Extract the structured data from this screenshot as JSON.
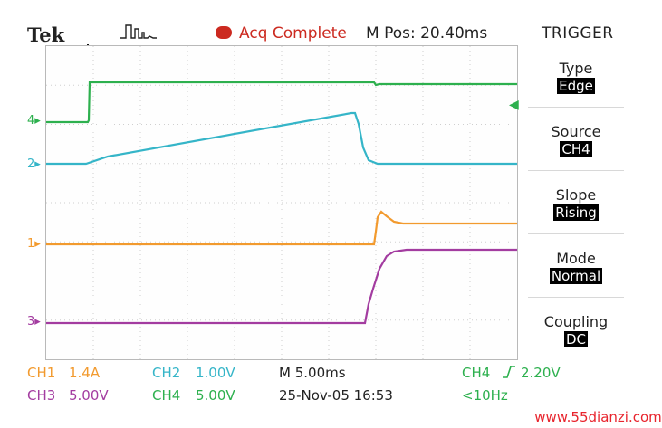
{
  "header": {
    "brand": "Tek",
    "acq_status": "Acq Complete",
    "m_pos": "M Pos: 20.40ms",
    "panel_title": "TRIGGER"
  },
  "trigger_menu": [
    {
      "label": "Type",
      "value": "Edge"
    },
    {
      "label": "Source",
      "value": "CH4"
    },
    {
      "label": "Slope",
      "value": "Rising"
    },
    {
      "label": "Mode",
      "value": "Normal"
    },
    {
      "label": "Coupling",
      "value": "DC"
    }
  ],
  "channel_markers": {
    "ch1": "1",
    "ch2": "2",
    "ch3": "3",
    "ch4": "4"
  },
  "status": {
    "ch1_label": "CH1",
    "ch1_scale": "1.4A",
    "ch2_label": "CH2",
    "ch2_scale": "1.00V",
    "ch3_label": "CH3",
    "ch3_scale": "5.00V",
    "ch4_label": "CH4",
    "ch4_scale": "5.00V",
    "timebase": "M 5.00ms",
    "date_time": "25-Nov-05 16:53",
    "trig_source": "CH4",
    "trig_level": "2.20V",
    "trig_freq": "<10Hz"
  },
  "watermark": "www.55dianzi.com",
  "colors": {
    "ch1": "#f29a2e",
    "ch2": "#35b5c8",
    "ch3": "#a33ca0",
    "ch4": "#2db04e",
    "acq": "#cc2a20"
  }
}
